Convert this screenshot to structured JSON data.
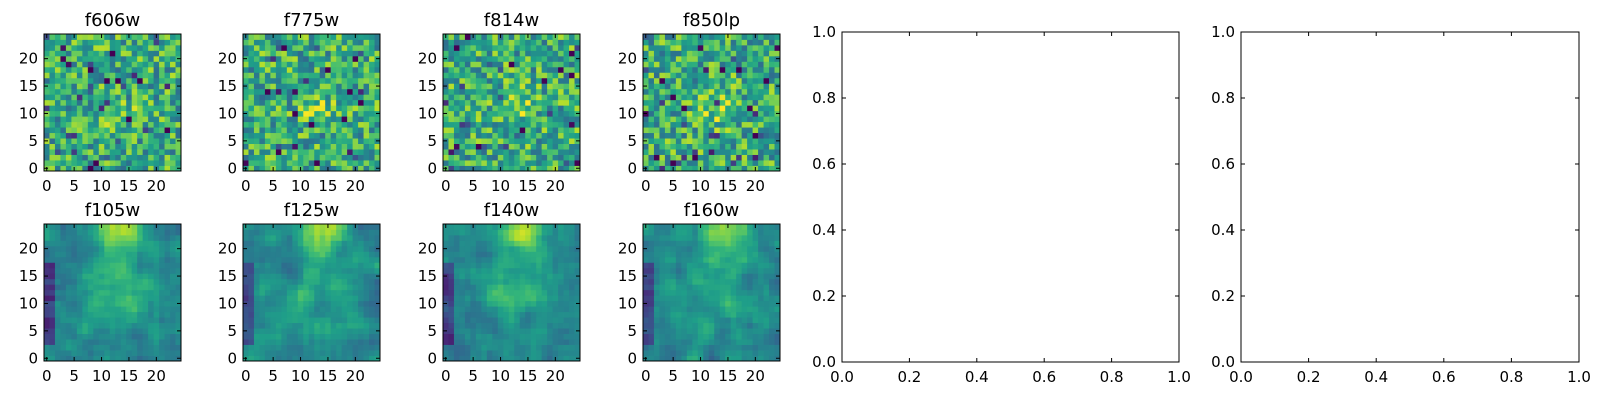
{
  "chart_data": [
    {
      "type": "heatmap",
      "title": "f606w",
      "x_ticks": [
        "0",
        "5",
        "10",
        "15",
        "20"
      ],
      "y_ticks": [
        "0",
        "5",
        "10",
        "15",
        "20"
      ],
      "xlim": [
        -0.5,
        24.5
      ],
      "ylim": [
        -0.5,
        24.5
      ],
      "grid": false,
      "colormap": "viridis",
      "pattern": "noisy-central-peak"
    },
    {
      "type": "heatmap",
      "title": "f775w",
      "x_ticks": [
        "0",
        "5",
        "10",
        "15",
        "20"
      ],
      "y_ticks": [
        "0",
        "5",
        "10",
        "15",
        "20"
      ],
      "xlim": [
        -0.5,
        24.5
      ],
      "ylim": [
        -0.5,
        24.5
      ],
      "grid": false,
      "colormap": "viridis",
      "pattern": "noisy-central-peak"
    },
    {
      "type": "heatmap",
      "title": "f814w",
      "x_ticks": [
        "0",
        "5",
        "10",
        "15",
        "20"
      ],
      "y_ticks": [
        "0",
        "5",
        "10",
        "15",
        "20"
      ],
      "xlim": [
        -0.5,
        24.5
      ],
      "ylim": [
        -0.5,
        24.5
      ],
      "grid": false,
      "colormap": "viridis",
      "pattern": "noisy-central-peak"
    },
    {
      "type": "heatmap",
      "title": "f850lp",
      "x_ticks": [
        "0",
        "5",
        "10",
        "15",
        "20"
      ],
      "y_ticks": [
        "0",
        "5",
        "10",
        "15",
        "20"
      ],
      "xlim": [
        -0.5,
        24.5
      ],
      "ylim": [
        -0.5,
        24.5
      ],
      "grid": false,
      "colormap": "viridis",
      "pattern": "noisy-central-peak"
    },
    {
      "type": "line",
      "title": "",
      "x_ticks": [
        "0.0",
        "0.2",
        "0.4",
        "0.6",
        "0.8",
        "1.0"
      ],
      "y_ticks": [
        "0.0",
        "0.2",
        "0.4",
        "0.6",
        "0.8",
        "1.0"
      ],
      "xlim": [
        0,
        1
      ],
      "ylim": [
        0,
        1
      ],
      "grid": false,
      "series": []
    },
    {
      "type": "line",
      "title": "",
      "x_ticks": [
        "0.0",
        "0.2",
        "0.4",
        "0.6",
        "0.8",
        "1.0"
      ],
      "y_ticks": [
        "0.0",
        "0.2",
        "0.4",
        "0.6",
        "0.8",
        "1.0"
      ],
      "xlim": [
        0,
        1
      ],
      "ylim": [
        0,
        1
      ],
      "grid": false,
      "series": []
    },
    {
      "type": "heatmap",
      "title": "f105w",
      "x_ticks": [
        "0",
        "5",
        "10",
        "15",
        "20"
      ],
      "y_ticks": [
        "0",
        "5",
        "10",
        "15",
        "20"
      ],
      "xlim": [
        -0.5,
        24.5
      ],
      "ylim": [
        -0.5,
        24.5
      ],
      "grid": false,
      "colormap": "viridis",
      "pattern": "smooth-top-peak"
    },
    {
      "type": "heatmap",
      "title": "f125w",
      "x_ticks": [
        "0",
        "5",
        "10",
        "15",
        "20"
      ],
      "y_ticks": [
        "0",
        "5",
        "10",
        "15",
        "20"
      ],
      "xlim": [
        -0.5,
        24.5
      ],
      "ylim": [
        -0.5,
        24.5
      ],
      "grid": false,
      "colormap": "viridis",
      "pattern": "smooth-top-peak"
    },
    {
      "type": "heatmap",
      "title": "f140w",
      "x_ticks": [
        "0",
        "5",
        "10",
        "15",
        "20"
      ],
      "y_ticks": [
        "0",
        "5",
        "10",
        "15",
        "20"
      ],
      "xlim": [
        -0.5,
        24.5
      ],
      "ylim": [
        -0.5,
        24.5
      ],
      "grid": false,
      "colormap": "viridis",
      "pattern": "smooth-top-peak"
    },
    {
      "type": "heatmap",
      "title": "f160w",
      "x_ticks": [
        "0",
        "5",
        "10",
        "15",
        "20"
      ],
      "y_ticks": [
        "0",
        "5",
        "10",
        "15",
        "20"
      ],
      "xlim": [
        -0.5,
        24.5
      ],
      "ylim": [
        -0.5,
        24.5
      ],
      "grid": false,
      "colormap": "viridis",
      "pattern": "smooth-top-peak"
    }
  ]
}
